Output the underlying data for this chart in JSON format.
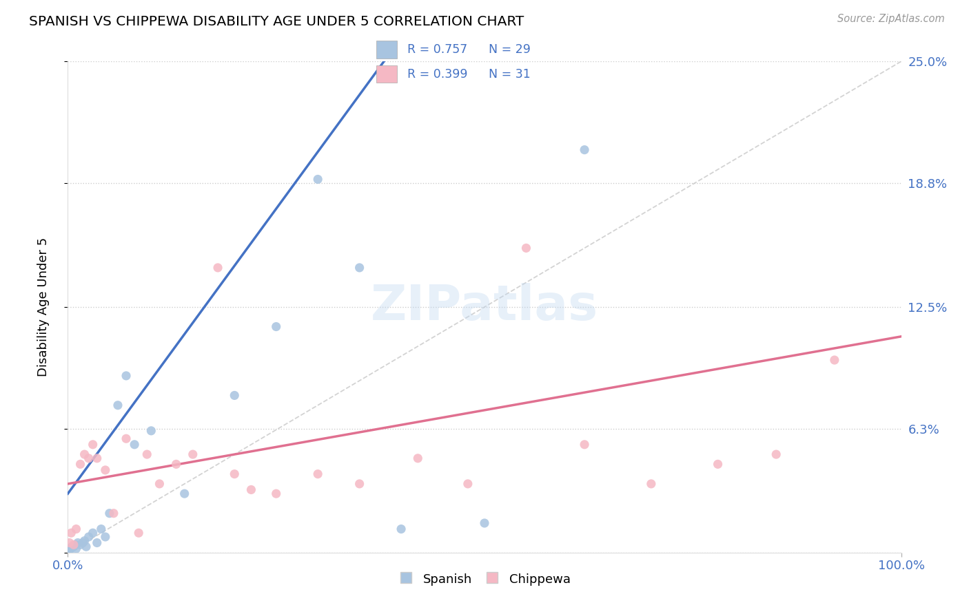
{
  "title": "SPANISH VS CHIPPEWA DISABILITY AGE UNDER 5 CORRELATION CHART",
  "source": "Source: ZipAtlas.com",
  "ylabel": "Disability Age Under 5",
  "xlim": [
    0,
    100
  ],
  "ylim": [
    0,
    25
  ],
  "ytick_vals": [
    0,
    6.3,
    12.5,
    18.8,
    25.0
  ],
  "ytick_labels": [
    "",
    "6.3%",
    "12.5%",
    "18.8%",
    "25.0%"
  ],
  "xtick_vals": [
    0,
    100
  ],
  "xtick_labels": [
    "0.0%",
    "100.0%"
  ],
  "background_color": "#ffffff",
  "grid_color": "#cccccc",
  "spanish_color": "#a8c4e0",
  "chippewa_color": "#f5b8c4",
  "spanish_line_color": "#4472c4",
  "chippewa_line_color": "#e07090",
  "ref_line_color": "#c8c8c8",
  "accent_color": "#4472c4",
  "legend_R_spanish": "R = 0.757",
  "legend_N_spanish": "N = 29",
  "legend_R_chippewa": "R = 0.399",
  "legend_N_chippewa": "N = 31",
  "spanish_x": [
    0.2,
    0.3,
    0.5,
    0.7,
    0.9,
    1.0,
    1.2,
    1.5,
    1.8,
    2.0,
    2.2,
    2.5,
    3.0,
    3.5,
    4.0,
    4.5,
    5.0,
    6.0,
    7.0,
    8.0,
    10.0,
    14.0,
    20.0,
    25.0,
    30.0,
    35.0,
    40.0,
    50.0,
    62.0
  ],
  "spanish_y": [
    0.1,
    0.2,
    0.3,
    0.3,
    0.4,
    0.2,
    0.5,
    0.4,
    0.5,
    0.6,
    0.3,
    0.8,
    1.0,
    0.5,
    1.2,
    0.8,
    2.0,
    7.5,
    9.0,
    5.5,
    6.2,
    3.0,
    8.0,
    11.5,
    19.0,
    14.5,
    1.2,
    1.5,
    20.5
  ],
  "chippewa_x": [
    0.2,
    0.4,
    0.7,
    1.0,
    1.5,
    2.0,
    2.5,
    3.0,
    3.5,
    4.5,
    5.5,
    7.0,
    8.5,
    9.5,
    11.0,
    13.0,
    15.0,
    18.0,
    20.0,
    22.0,
    25.0,
    30.0,
    35.0,
    42.0,
    48.0,
    55.0,
    62.0,
    70.0,
    78.0,
    85.0,
    92.0
  ],
  "chippewa_y": [
    0.5,
    1.0,
    0.4,
    1.2,
    4.5,
    5.0,
    4.8,
    5.5,
    4.8,
    4.2,
    2.0,
    5.8,
    1.0,
    5.0,
    3.5,
    4.5,
    5.0,
    14.5,
    4.0,
    3.2,
    3.0,
    4.0,
    3.5,
    4.8,
    3.5,
    15.5,
    5.5,
    3.5,
    4.5,
    5.0,
    9.8
  ]
}
